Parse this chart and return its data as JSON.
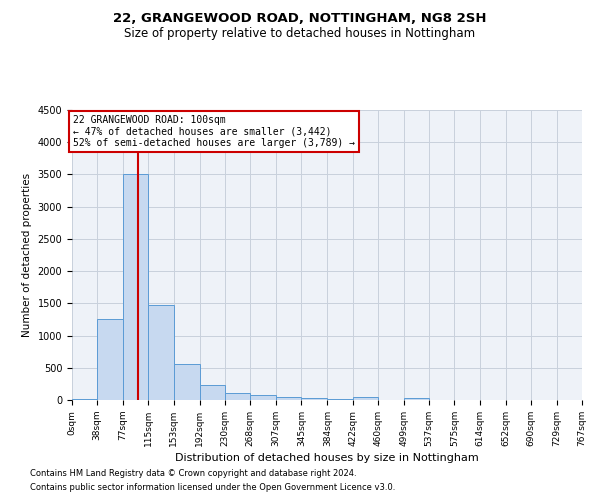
{
  "title1": "22, GRANGEWOOD ROAD, NOTTINGHAM, NG8 2SH",
  "title2": "Size of property relative to detached houses in Nottingham",
  "xlabel": "Distribution of detached houses by size in Nottingham",
  "ylabel": "Number of detached properties",
  "footnote1": "Contains HM Land Registry data © Crown copyright and database right 2024.",
  "footnote2": "Contains public sector information licensed under the Open Government Licence v3.0.",
  "annotation_line1": "22 GRANGEWOOD ROAD: 100sqm",
  "annotation_line2": "← 47% of detached houses are smaller (3,442)",
  "annotation_line3": "52% of semi-detached houses are larger (3,789) →",
  "red_line_x": 100,
  "bin_edges": [
    0,
    38,
    77,
    115,
    153,
    192,
    230,
    268,
    307,
    345,
    384,
    422,
    460,
    499,
    537,
    575,
    614,
    652,
    690,
    729,
    767
  ],
  "bar_heights": [
    20,
    1250,
    3500,
    1480,
    560,
    230,
    110,
    80,
    50,
    30,
    20,
    50,
    0,
    30,
    0,
    0,
    0,
    0,
    0,
    0
  ],
  "bar_color": "#c7d9f0",
  "bar_edge_color": "#5b9bd5",
  "red_line_color": "#cc0000",
  "grid_color": "#c8d0dc",
  "bg_color": "#eef2f8",
  "ylim": [
    0,
    4500
  ],
  "yticks": [
    0,
    500,
    1000,
    1500,
    2000,
    2500,
    3000,
    3500,
    4000,
    4500
  ]
}
